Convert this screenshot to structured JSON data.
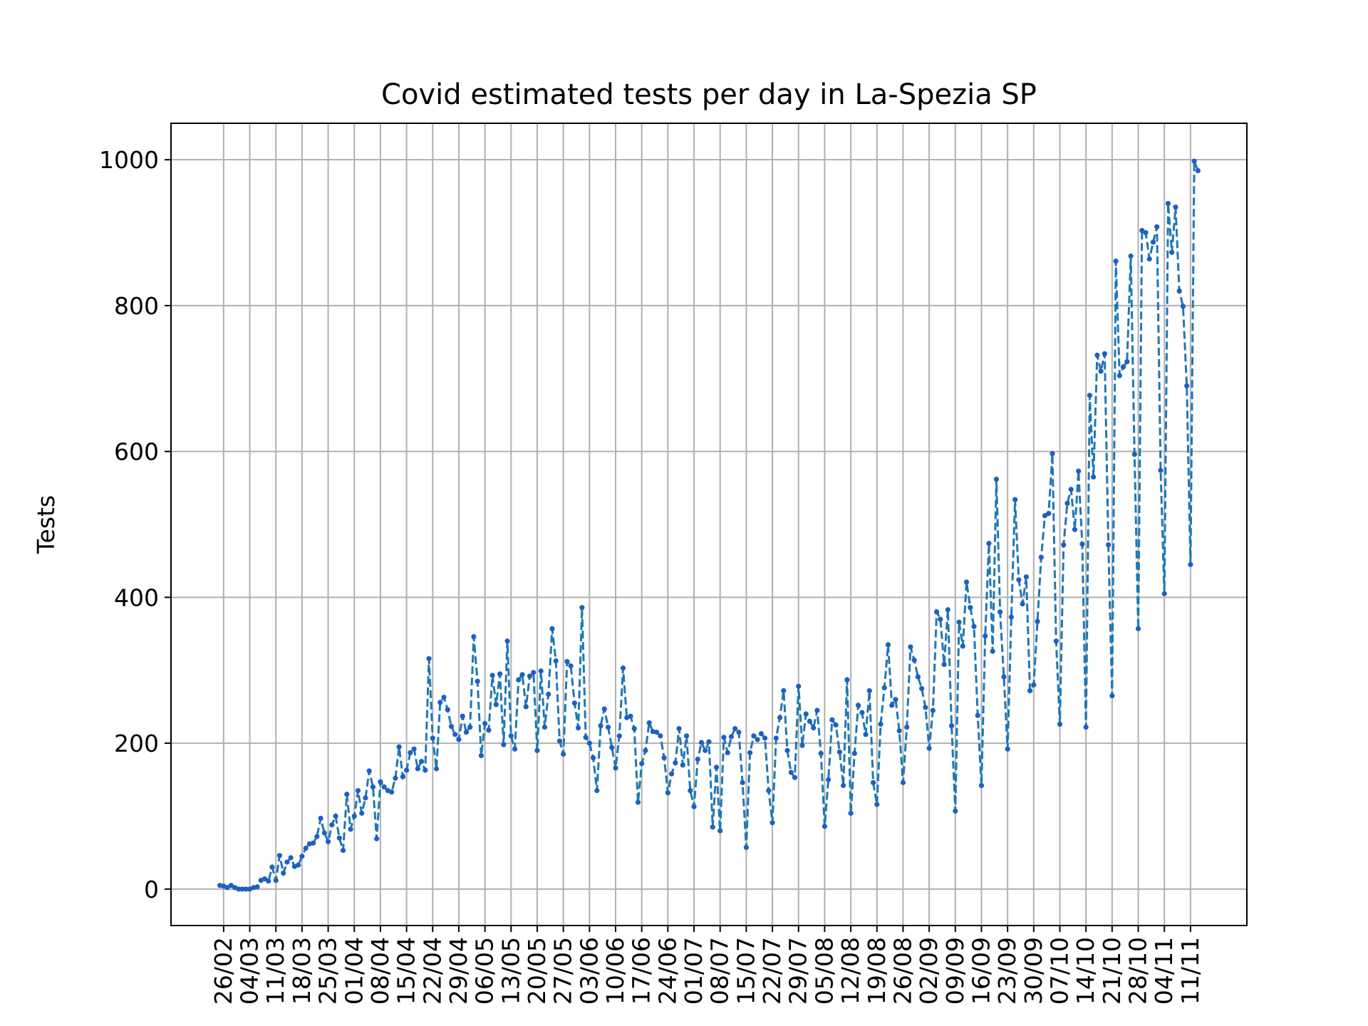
{
  "chart_data": {
    "type": "line",
    "title": "Covid estimated tests per day in La-Spezia SP",
    "xlabel": "",
    "ylabel": "Tests",
    "ylim": [
      -50,
      1050
    ],
    "yticks": [
      0,
      200,
      400,
      600,
      800,
      1000
    ],
    "x_tick_labels": [
      "26/02",
      "04/03",
      "11/03",
      "18/03",
      "25/03",
      "01/04",
      "08/04",
      "15/04",
      "22/04",
      "29/04",
      "06/05",
      "13/05",
      "20/05",
      "27/05",
      "03/06",
      "10/06",
      "17/06",
      "24/06",
      "01/07",
      "08/07",
      "15/07",
      "22/07",
      "29/07",
      "05/08",
      "12/08",
      "19/08",
      "26/08",
      "02/09",
      "09/09",
      "16/09",
      "23/09",
      "30/09",
      "07/10",
      "14/10",
      "21/10",
      "28/10",
      "04/11",
      "11/11"
    ],
    "grid": true,
    "legend": "none",
    "series_color": "#1f77b4",
    "marker_color": "#1f5fc0",
    "line_style": "dashed",
    "day_offset_start": -1,
    "series": [
      {
        "values": [
          5,
          4,
          2,
          5,
          2,
          0,
          0,
          0,
          0,
          2,
          3,
          12,
          14,
          11,
          30,
          12,
          46,
          22,
          37,
          43,
          31,
          33,
          45,
          56,
          62,
          63,
          72,
          97,
          77,
          65,
          88,
          100,
          70,
          53,
          130,
          82,
          100,
          135,
          104,
          125,
          162,
          140,
          69,
          147,
          140,
          135,
          133,
          152,
          195,
          154,
          163,
          187,
          192,
          165,
          175,
          163,
          316,
          207,
          165,
          256,
          263,
          246,
          223,
          212,
          205,
          237,
          215,
          222,
          346,
          285,
          183,
          227,
          218,
          293,
          253,
          295,
          198,
          340,
          210,
          192,
          287,
          294,
          250,
          292,
          297,
          190,
          299,
          222,
          267,
          357,
          313,
          203,
          185,
          312,
          306,
          255,
          221,
          386,
          208,
          200,
          180,
          135,
          224,
          247,
          222,
          194,
          166,
          210,
          303,
          235,
          237,
          220,
          119,
          172,
          190,
          228,
          216,
          215,
          210,
          180,
          132,
          158,
          173,
          220,
          170,
          210,
          135,
          113,
          178,
          201,
          190,
          202,
          85,
          167,
          80,
          208,
          187,
          209,
          220,
          215,
          146,
          57,
          187,
          210,
          205,
          213,
          207,
          135,
          91,
          207,
          235,
          272,
          190,
          160,
          153,
          278,
          197,
          240,
          230,
          221,
          245,
          186,
          86,
          150,
          232,
          225,
          188,
          142,
          287,
          104,
          186,
          252,
          242,
          212,
          272,
          146,
          116,
          226,
          276,
          335,
          252,
          260,
          217,
          146,
          222,
          332,
          314,
          291,
          275,
          249,
          193,
          245,
          380,
          370,
          308,
          383,
          224,
          107,
          366,
          333,
          421,
          386,
          360,
          238,
          142,
          347,
          474,
          326,
          562,
          380,
          291,
          192,
          373,
          534,
          424,
          391,
          428,
          272,
          280,
          367,
          455,
          512,
          515,
          597,
          340,
          226,
          472,
          529,
          548,
          493,
          573,
          473,
          222,
          677,
          565,
          732,
          710,
          734,
          472,
          265,
          861,
          704,
          716,
          723,
          868,
          596,
          357,
          903,
          900,
          864,
          887,
          908,
          574,
          405,
          940,
          873,
          935,
          820,
          799,
          690,
          445,
          998,
          985
        ]
      }
    ]
  }
}
